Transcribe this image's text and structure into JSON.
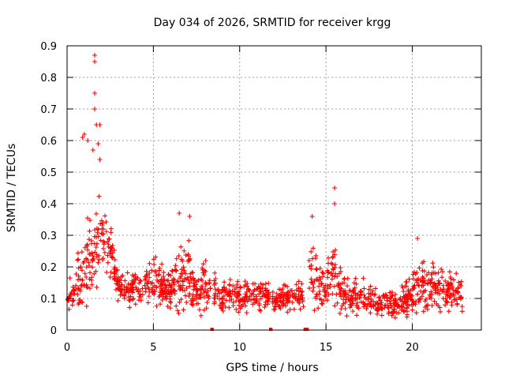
{
  "chart_data": {
    "type": "scatter",
    "title": "Day 034 of 2026, SRMTID for receiver krgg",
    "xlabel": "GPS time / hours",
    "ylabel": "SRMTID / TECUs",
    "xlim": [
      0,
      24
    ],
    "ylim": [
      0,
      0.9
    ],
    "x_ticks": [
      0,
      5,
      10,
      15,
      20
    ],
    "y_ticks": [
      0,
      0.1,
      0.2,
      0.3,
      0.4,
      0.5,
      0.6,
      0.7,
      0.8,
      0.9
    ],
    "grid": true,
    "marker": "plus",
    "color": "#ff0000",
    "envelope": {
      "description": "approximate SRMTID level (TECUs) vs GPS hour read from the scatter",
      "x": [
        0.0,
        0.5,
        1.0,
        1.5,
        2.0,
        2.5,
        3.0,
        4.0,
        5.0,
        6.0,
        6.5,
        7.0,
        7.5,
        8.0,
        9.0,
        10.0,
        11.0,
        12.0,
        13.0,
        13.8,
        14.2,
        14.6,
        15.0,
        15.4,
        16.0,
        17.0,
        18.0,
        19.0,
        20.0,
        20.5,
        21.0,
        22.0,
        22.8
      ],
      "center": [
        0.1,
        0.13,
        0.18,
        0.24,
        0.3,
        0.26,
        0.13,
        0.12,
        0.16,
        0.12,
        0.16,
        0.18,
        0.12,
        0.13,
        0.11,
        0.11,
        0.11,
        0.1,
        0.1,
        0.11,
        0.19,
        0.14,
        0.12,
        0.2,
        0.11,
        0.11,
        0.09,
        0.08,
        0.12,
        0.15,
        0.13,
        0.13,
        0.11
      ],
      "spread": [
        0.05,
        0.07,
        0.14,
        0.17,
        0.12,
        0.09,
        0.05,
        0.05,
        0.08,
        0.05,
        0.11,
        0.1,
        0.05,
        0.08,
        0.05,
        0.05,
        0.05,
        0.04,
        0.04,
        0.05,
        0.11,
        0.08,
        0.06,
        0.11,
        0.07,
        0.06,
        0.05,
        0.04,
        0.07,
        0.09,
        0.07,
        0.07,
        0.05
      ]
    },
    "outliers": [
      {
        "x": 1.6,
        "y": 0.87
      },
      {
        "x": 1.6,
        "y": 0.85
      },
      {
        "x": 1.6,
        "y": 0.75
      },
      {
        "x": 1.6,
        "y": 0.7
      },
      {
        "x": 1.9,
        "y": 0.65
      },
      {
        "x": 1.7,
        "y": 0.65
      },
      {
        "x": 0.9,
        "y": 0.61
      },
      {
        "x": 1.0,
        "y": 0.62
      },
      {
        "x": 1.2,
        "y": 0.6
      },
      {
        "x": 1.8,
        "y": 0.59
      },
      {
        "x": 1.5,
        "y": 0.57
      },
      {
        "x": 1.9,
        "y": 0.54
      },
      {
        "x": 14.2,
        "y": 0.36
      },
      {
        "x": 15.5,
        "y": 0.45
      },
      {
        "x": 15.5,
        "y": 0.4
      },
      {
        "x": 6.5,
        "y": 0.37
      },
      {
        "x": 7.1,
        "y": 0.36
      },
      {
        "x": 20.3,
        "y": 0.29
      }
    ],
    "gaps_hours": [
      [
        8.3,
        8.5
      ],
      [
        11.7,
        11.9
      ],
      [
        13.7,
        14.0
      ]
    ],
    "x_end": 22.9
  }
}
